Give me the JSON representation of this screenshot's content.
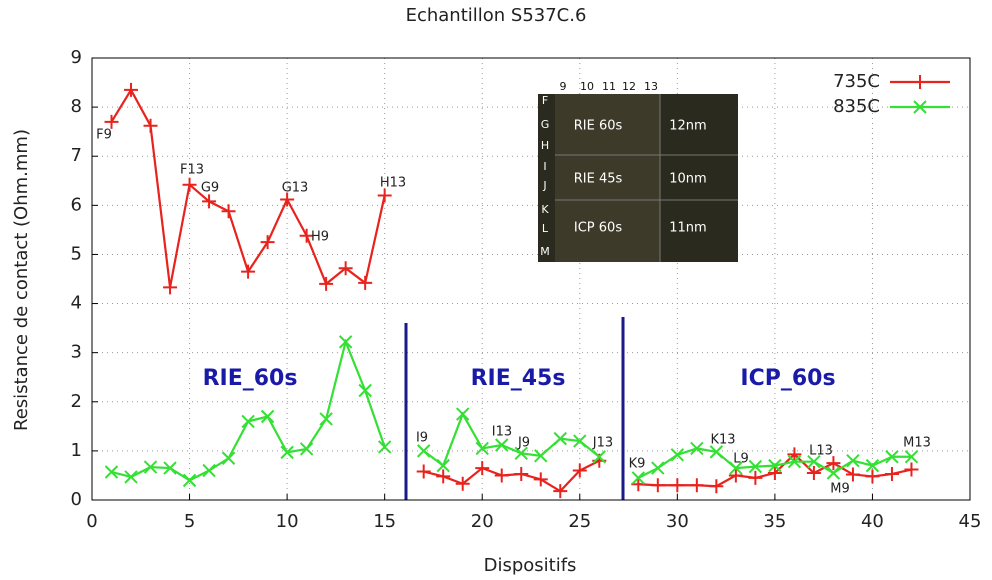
{
  "chart_data": {
    "type": "line",
    "title": "Echantillon S537C.6",
    "x_label": "Dispositifs",
    "y_label": "Resistance de contact (Ohm.mm)",
    "x": [
      1,
      2,
      3,
      4,
      5,
      6,
      7,
      8,
      9,
      10,
      11,
      12,
      13,
      14,
      15,
      16,
      17,
      18,
      19,
      20,
      21,
      22,
      23,
      24,
      25,
      26,
      27,
      28,
      29,
      30,
      31,
      32,
      33,
      34,
      35,
      36,
      37,
      38,
      39,
      40,
      41,
      42
    ],
    "series": [
      {
        "name": "735C",
        "color": "#e8221c",
        "marker": "plus",
        "values": [
          7.7,
          8.35,
          7.62,
          4.33,
          6.42,
          6.08,
          5.88,
          4.65,
          5.25,
          6.12,
          5.38,
          4.4,
          4.72,
          4.42,
          6.2,
          null,
          0.58,
          0.48,
          0.33,
          0.65,
          0.5,
          0.53,
          0.42,
          0.18,
          0.6,
          0.8,
          null,
          0.32,
          0.3,
          0.3,
          0.3,
          0.28,
          0.5,
          0.45,
          0.55,
          0.93,
          0.55,
          0.75,
          0.52,
          0.48,
          0.53,
          0.62
        ]
      },
      {
        "name": "835C",
        "color": "#33e033",
        "marker": "cross",
        "values": [
          0.57,
          0.47,
          0.67,
          0.65,
          0.4,
          0.6,
          0.85,
          1.6,
          1.7,
          0.97,
          1.04,
          1.65,
          3.22,
          2.23,
          1.08,
          null,
          1.0,
          0.7,
          1.75,
          1.05,
          1.12,
          0.95,
          0.9,
          1.25,
          1.2,
          0.88,
          null,
          0.45,
          0.65,
          0.92,
          1.05,
          0.98,
          0.65,
          0.68,
          0.7,
          0.78,
          0.78,
          0.55,
          0.8,
          0.7,
          0.88,
          0.88
        ]
      }
    ],
    "xlim": [
      0,
      45
    ],
    "ylim": [
      0,
      9
    ],
    "xticks": [
      0,
      5,
      10,
      15,
      20,
      25,
      30,
      35,
      40,
      45
    ],
    "yticks": [
      0,
      1,
      2,
      3,
      4,
      5,
      6,
      7,
      8,
      9
    ],
    "grid": true,
    "legend": "upper right",
    "annotations": [
      "F9",
      "F13",
      "G9",
      "G13",
      "H9",
      "H13",
      "I9",
      "I13",
      "J9",
      "J13",
      "K9",
      "K13",
      "L9",
      "L13",
      "M9",
      "M13"
    ],
    "region_labels": [
      "RIE_60s",
      "RIE_45s",
      "ICP_60s"
    ],
    "inset": {
      "column_labels": [
        "9",
        "10",
        "11",
        "12",
        "13"
      ],
      "row_labels": [
        "F",
        "G",
        "H",
        "I",
        "J",
        "K",
        "L",
        "M"
      ],
      "blocks": [
        {
          "process": "RIE 60s",
          "thickness": "12nm"
        },
        {
          "process": "RIE 45s",
          "thickness": "10nm"
        },
        {
          "process": "ICP 60s",
          "thickness": "11nm"
        }
      ]
    }
  }
}
